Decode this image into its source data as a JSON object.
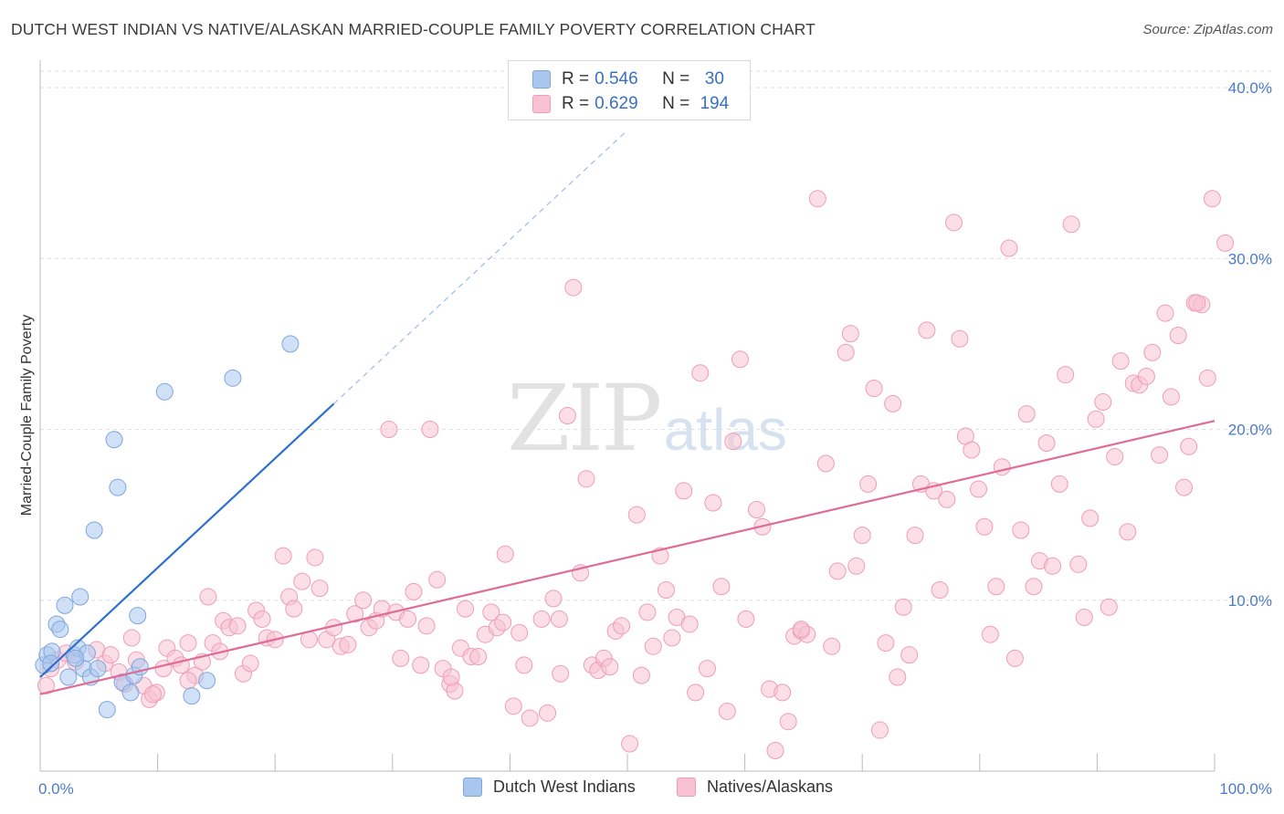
{
  "header": {
    "title": "DUTCH WEST INDIAN VS NATIVE/ALASKAN MARRIED-COUPLE FAMILY POVERTY CORRELATION CHART",
    "source": "Source: ZipAtlas.com"
  },
  "watermark": {
    "zip": "ZIP",
    "atlas": "atlas"
  },
  "legend": {
    "rows": [
      {
        "r_label": "R = ",
        "r_value": "0.546",
        "n_label": "N = ",
        "n_value": " 30",
        "color": "#a9c6ee",
        "border": "#7ea6dd"
      },
      {
        "r_label": "R = ",
        "r_value": "0.629",
        "n_label": "N = ",
        "n_value": "194",
        "color": "#f8c2d2",
        "border": "#ee9db7"
      }
    ]
  },
  "bottom_legend": [
    {
      "label": "Dutch West Indians",
      "color": "#a9c6ee",
      "border": "#7ea6dd"
    },
    {
      "label": "Natives/Alaskans",
      "color": "#f8c2d2",
      "border": "#ee9db7"
    }
  ],
  "chart_data": {
    "type": "scatter",
    "title": "DUTCH WEST INDIAN VS NATIVE/ALASKAN MARRIED-COUPLE FAMILY POVERTY CORRELATION CHART",
    "xlabel": "",
    "ylabel": "Married-Couple Family Poverty",
    "xlim": [
      0,
      100
    ],
    "ylim": [
      0,
      40
    ],
    "x_tick_labels": [
      "0.0%",
      "100.0%"
    ],
    "y_ticks": [
      10,
      20,
      30,
      40
    ],
    "y_tick_labels": [
      "10.0%",
      "20.0%",
      "30.0%",
      "40.0%"
    ],
    "grid": true,
    "series": [
      {
        "name": "Dutch West Indians",
        "color": "#a9c6ee",
        "stroke": "#7ea6dd",
        "line_color": "#2f6fcf",
        "trend": {
          "x0": 0,
          "y0": 5.5,
          "x1": 25,
          "y1": 21.5,
          "dashed_to_x": 50,
          "dashed_to_y": 37.5
        },
        "points": [
          [
            0.3,
            6.2
          ],
          [
            0.6,
            6.8
          ],
          [
            1.0,
            7.0
          ],
          [
            1.4,
            8.6
          ],
          [
            1.7,
            8.3
          ],
          [
            2.1,
            9.7
          ],
          [
            2.4,
            5.5
          ],
          [
            2.9,
            6.8
          ],
          [
            3.2,
            7.2
          ],
          [
            3.4,
            10.2
          ],
          [
            3.7,
            6.0
          ],
          [
            4.0,
            6.9
          ],
          [
            4.3,
            5.5
          ],
          [
            4.6,
            14.1
          ],
          [
            4.9,
            6.0
          ],
          [
            5.7,
            3.6
          ],
          [
            6.3,
            19.4
          ],
          [
            6.6,
            16.6
          ],
          [
            7.0,
            5.2
          ],
          [
            7.7,
            4.6
          ],
          [
            8.0,
            5.6
          ],
          [
            8.3,
            9.1
          ],
          [
            8.5,
            6.1
          ],
          [
            10.6,
            22.2
          ],
          [
            12.9,
            4.4
          ],
          [
            14.2,
            5.3
          ],
          [
            16.4,
            23.0
          ],
          [
            21.3,
            25.0
          ],
          [
            0.9,
            6.3
          ],
          [
            3.0,
            6.6
          ]
        ]
      },
      {
        "name": "Natives/Alaskans",
        "color": "#f8c2d2",
        "stroke": "#ee9db7",
        "line_color": "#e06b96",
        "trend": {
          "x0": 0,
          "y0": 4.5,
          "x1": 100,
          "y1": 20.5
        },
        "points": [
          [
            0.5,
            5.0
          ],
          [
            0.9,
            6.0
          ],
          [
            1.5,
            6.5
          ],
          [
            2.2,
            6.9
          ],
          [
            3.0,
            6.4
          ],
          [
            4.8,
            7.1
          ],
          [
            5.5,
            6.3
          ],
          [
            6.0,
            6.8
          ],
          [
            6.7,
            5.8
          ],
          [
            7.2,
            5.1
          ],
          [
            7.8,
            7.8
          ],
          [
            8.2,
            6.5
          ],
          [
            8.8,
            5.0
          ],
          [
            9.3,
            4.2
          ],
          [
            9.9,
            4.6
          ],
          [
            10.5,
            6.0
          ],
          [
            10.8,
            7.2
          ],
          [
            11.5,
            6.6
          ],
          [
            12.0,
            6.2
          ],
          [
            12.6,
            7.5
          ],
          [
            13.2,
            5.6
          ],
          [
            13.8,
            6.4
          ],
          [
            14.3,
            10.2
          ],
          [
            14.7,
            7.5
          ],
          [
            15.3,
            7.0
          ],
          [
            15.6,
            8.8
          ],
          [
            16.1,
            8.4
          ],
          [
            16.8,
            8.5
          ],
          [
            17.3,
            5.7
          ],
          [
            17.9,
            6.3
          ],
          [
            18.4,
            9.4
          ],
          [
            18.9,
            8.9
          ],
          [
            19.3,
            7.8
          ],
          [
            20.0,
            7.7
          ],
          [
            20.7,
            12.6
          ],
          [
            21.2,
            10.2
          ],
          [
            21.6,
            9.5
          ],
          [
            22.3,
            11.1
          ],
          [
            22.9,
            7.7
          ],
          [
            23.4,
            12.5
          ],
          [
            23.8,
            10.7
          ],
          [
            24.4,
            7.7
          ],
          [
            25.0,
            8.4
          ],
          [
            25.6,
            7.3
          ],
          [
            26.2,
            7.4
          ],
          [
            26.8,
            9.2
          ],
          [
            27.5,
            10.0
          ],
          [
            28.0,
            8.4
          ],
          [
            28.6,
            8.8
          ],
          [
            29.1,
            9.5
          ],
          [
            29.7,
            20.0
          ],
          [
            30.3,
            9.3
          ],
          [
            30.7,
            6.6
          ],
          [
            31.3,
            8.9
          ],
          [
            31.8,
            10.5
          ],
          [
            32.4,
            6.2
          ],
          [
            32.9,
            8.5
          ],
          [
            33.2,
            20.0
          ],
          [
            33.8,
            11.2
          ],
          [
            34.3,
            6.0
          ],
          [
            34.9,
            5.1
          ],
          [
            35.3,
            4.7
          ],
          [
            35.8,
            7.2
          ],
          [
            36.2,
            9.5
          ],
          [
            36.7,
            6.7
          ],
          [
            37.3,
            6.7
          ],
          [
            37.9,
            8.0
          ],
          [
            38.4,
            9.3
          ],
          [
            38.9,
            8.4
          ],
          [
            39.4,
            8.7
          ],
          [
            39.6,
            12.7
          ],
          [
            40.3,
            3.8
          ],
          [
            40.8,
            8.1
          ],
          [
            41.2,
            6.2
          ],
          [
            41.7,
            3.1
          ],
          [
            42.7,
            8.9
          ],
          [
            43.2,
            3.4
          ],
          [
            43.7,
            10.1
          ],
          [
            44.2,
            8.9
          ],
          [
            44.3,
            5.7
          ],
          [
            44.9,
            20.8
          ],
          [
            45.4,
            28.3
          ],
          [
            46.0,
            11.6
          ],
          [
            46.5,
            17.1
          ],
          [
            47.0,
            6.2
          ],
          [
            47.5,
            5.9
          ],
          [
            48.0,
            6.6
          ],
          [
            48.5,
            6.1
          ],
          [
            49.0,
            8.2
          ],
          [
            49.5,
            8.5
          ],
          [
            50.2,
            1.6
          ],
          [
            50.8,
            15.0
          ],
          [
            51.2,
            5.6
          ],
          [
            51.7,
            9.3
          ],
          [
            52.2,
            7.3
          ],
          [
            52.8,
            12.6
          ],
          [
            53.3,
            10.6
          ],
          [
            53.8,
            7.8
          ],
          [
            54.2,
            9.0
          ],
          [
            54.8,
            16.4
          ],
          [
            55.3,
            8.6
          ],
          [
            55.8,
            4.6
          ],
          [
            56.2,
            23.3
          ],
          [
            56.8,
            6.0
          ],
          [
            57.3,
            15.7
          ],
          [
            58.0,
            10.8
          ],
          [
            58.5,
            3.5
          ],
          [
            59.0,
            19.3
          ],
          [
            59.6,
            24.1
          ],
          [
            60.1,
            8.9
          ],
          [
            61.0,
            15.3
          ],
          [
            61.5,
            14.3
          ],
          [
            62.1,
            4.8
          ],
          [
            62.6,
            1.2
          ],
          [
            63.2,
            4.6
          ],
          [
            63.7,
            2.9
          ],
          [
            64.2,
            7.9
          ],
          [
            64.8,
            8.2
          ],
          [
            65.3,
            8.0
          ],
          [
            66.2,
            33.5
          ],
          [
            66.9,
            18.0
          ],
          [
            67.4,
            7.3
          ],
          [
            67.9,
            11.7
          ],
          [
            68.6,
            24.5
          ],
          [
            69.0,
            25.6
          ],
          [
            69.5,
            12.0
          ],
          [
            70.0,
            13.8
          ],
          [
            70.5,
            16.8
          ],
          [
            71.0,
            22.4
          ],
          [
            71.5,
            2.4
          ],
          [
            72.0,
            7.5
          ],
          [
            72.6,
            21.5
          ],
          [
            73.0,
            5.5
          ],
          [
            73.5,
            9.6
          ],
          [
            74.0,
            6.8
          ],
          [
            74.5,
            13.8
          ],
          [
            75.0,
            16.8
          ],
          [
            75.5,
            25.8
          ],
          [
            76.1,
            16.4
          ],
          [
            76.6,
            10.6
          ],
          [
            77.2,
            15.9
          ],
          [
            77.8,
            32.1
          ],
          [
            78.3,
            25.3
          ],
          [
            78.8,
            19.6
          ],
          [
            79.3,
            18.8
          ],
          [
            79.9,
            16.5
          ],
          [
            80.4,
            14.3
          ],
          [
            80.9,
            8.0
          ],
          [
            81.4,
            10.8
          ],
          [
            81.9,
            17.8
          ],
          [
            82.5,
            30.6
          ],
          [
            83.0,
            6.6
          ],
          [
            83.5,
            14.1
          ],
          [
            84.0,
            20.9
          ],
          [
            84.6,
            10.8
          ],
          [
            85.1,
            12.3
          ],
          [
            85.7,
            19.2
          ],
          [
            86.2,
            12.0
          ],
          [
            86.8,
            16.8
          ],
          [
            87.3,
            23.2
          ],
          [
            87.8,
            32.0
          ],
          [
            88.4,
            12.1
          ],
          [
            88.9,
            9.0
          ],
          [
            89.4,
            14.8
          ],
          [
            89.9,
            20.6
          ],
          [
            90.5,
            21.6
          ],
          [
            91.0,
            9.6
          ],
          [
            91.5,
            18.4
          ],
          [
            92.0,
            24.0
          ],
          [
            92.6,
            14.0
          ],
          [
            93.1,
            22.7
          ],
          [
            93.6,
            22.6
          ],
          [
            94.2,
            23.1
          ],
          [
            94.7,
            24.5
          ],
          [
            95.3,
            18.5
          ],
          [
            95.8,
            26.8
          ],
          [
            96.3,
            21.9
          ],
          [
            96.9,
            25.5
          ],
          [
            97.4,
            16.6
          ],
          [
            97.8,
            19.0
          ],
          [
            98.3,
            27.4
          ],
          [
            98.9,
            27.3
          ],
          [
            99.4,
            23.0
          ],
          [
            99.8,
            33.5
          ],
          [
            100.9,
            30.9
          ],
          [
            98.5,
            27.4
          ],
          [
            64.8,
            8.3
          ],
          [
            35.0,
            5.5
          ],
          [
            12.6,
            5.3
          ],
          [
            9.6,
            4.5
          ]
        ]
      }
    ]
  }
}
